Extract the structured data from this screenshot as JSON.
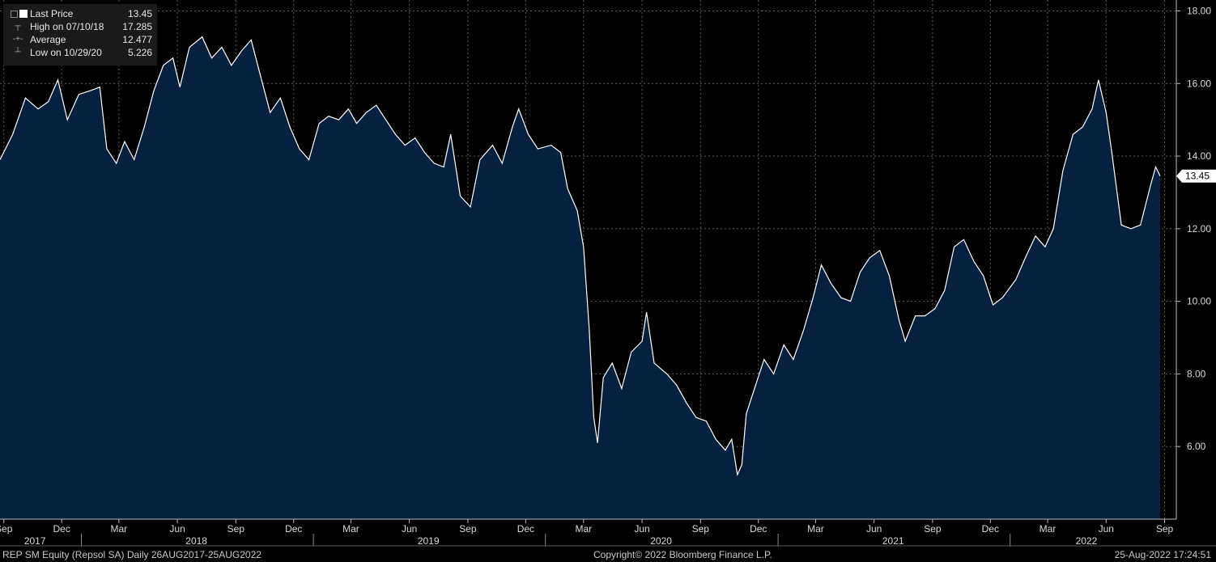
{
  "legend": {
    "items": [
      {
        "label": "Last Price",
        "value": "13.45"
      },
      {
        "label": "High on 07/10/18",
        "value": "17.285"
      },
      {
        "label": "Average",
        "value": "12.477"
      },
      {
        "label": "Low on 10/29/20",
        "value": "5.226"
      }
    ]
  },
  "footer": {
    "left": "REP SM Equity (Repsol SA)  Daily 26AUG2017-25AUG2022",
    "center": "Copyright© 2022 Bloomberg Finance L.P.",
    "right": "25-Aug-2022 17:24:51"
  },
  "colors": {
    "background": "#000000",
    "area_fill": "#06203f",
    "line": "#ffffff",
    "grid": "#5a5a5a"
  },
  "chart_data": {
    "type": "area",
    "ylim": [
      4.0,
      18.3
    ],
    "yticks": [
      "6.00",
      "8.00",
      "10.00",
      "12.00",
      "14.00",
      "16.00",
      "18.00"
    ],
    "last_price_label": "13.45",
    "xlim": [
      "2017-08-26",
      "2022-08-25"
    ],
    "months": [
      {
        "label": "Sep",
        "date": "2017-09-01"
      },
      {
        "label": "Dec",
        "date": "2017-12-01"
      },
      {
        "label": "Mar",
        "date": "2018-03-01"
      },
      {
        "label": "Jun",
        "date": "2018-06-01"
      },
      {
        "label": "Sep",
        "date": "2018-09-01"
      },
      {
        "label": "Dec",
        "date": "2018-12-01"
      },
      {
        "label": "Mar",
        "date": "2019-03-01"
      },
      {
        "label": "Jun",
        "date": "2019-06-01"
      },
      {
        "label": "Sep",
        "date": "2019-09-01"
      },
      {
        "label": "Dec",
        "date": "2019-12-01"
      },
      {
        "label": "Mar",
        "date": "2020-03-01"
      },
      {
        "label": "Jun",
        "date": "2020-06-01"
      },
      {
        "label": "Sep",
        "date": "2020-09-01"
      },
      {
        "label": "Dec",
        "date": "2020-12-01"
      },
      {
        "label": "Mar",
        "date": "2021-03-01"
      },
      {
        "label": "Jun",
        "date": "2021-06-01"
      },
      {
        "label": "Sep",
        "date": "2021-09-01"
      },
      {
        "label": "Dec",
        "date": "2021-12-01"
      },
      {
        "label": "Mar",
        "date": "2022-03-01"
      },
      {
        "label": "Jun",
        "date": "2022-06-01"
      },
      {
        "label": "Sep",
        "date": "2022-09-01"
      }
    ],
    "years": [
      {
        "label": "2017",
        "center": "2017-10-20"
      },
      {
        "label": "2018",
        "center": "2018-07-01"
      },
      {
        "label": "2019",
        "center": "2019-07-01"
      },
      {
        "label": "2020",
        "center": "2020-07-01"
      },
      {
        "label": "2021",
        "center": "2021-07-01"
      },
      {
        "label": "2022",
        "center": "2022-05-01"
      }
    ],
    "year_separators": [
      "2018-01-01",
      "2019-01-01",
      "2020-01-01",
      "2021-01-01",
      "2022-01-01"
    ],
    "series": [
      {
        "points": [
          [
            "2017-08-26",
            13.9
          ],
          [
            "2017-09-15",
            14.6
          ],
          [
            "2017-10-05",
            15.6
          ],
          [
            "2017-10-25",
            15.3
          ],
          [
            "2017-11-10",
            15.5
          ],
          [
            "2017-11-25",
            16.1
          ],
          [
            "2017-12-10",
            15.0
          ],
          [
            "2017-12-28",
            15.7
          ],
          [
            "2018-01-15",
            15.8
          ],
          [
            "2018-01-30",
            15.9
          ],
          [
            "2018-02-10",
            14.2
          ],
          [
            "2018-02-25",
            13.8
          ],
          [
            "2018-03-10",
            14.4
          ],
          [
            "2018-03-25",
            13.9
          ],
          [
            "2018-04-10",
            14.8
          ],
          [
            "2018-04-25",
            15.8
          ],
          [
            "2018-05-10",
            16.5
          ],
          [
            "2018-05-25",
            16.7
          ],
          [
            "2018-06-05",
            15.9
          ],
          [
            "2018-06-20",
            17.0
          ],
          [
            "2018-07-10",
            17.285
          ],
          [
            "2018-07-25",
            16.7
          ],
          [
            "2018-08-10",
            17.0
          ],
          [
            "2018-08-25",
            16.5
          ],
          [
            "2018-09-10",
            16.9
          ],
          [
            "2018-09-25",
            17.2
          ],
          [
            "2018-10-10",
            16.2
          ],
          [
            "2018-10-25",
            15.2
          ],
          [
            "2018-11-10",
            15.6
          ],
          [
            "2018-11-25",
            14.8
          ],
          [
            "2018-12-10",
            14.2
          ],
          [
            "2018-12-25",
            13.9
          ],
          [
            "2019-01-10",
            14.9
          ],
          [
            "2019-01-25",
            15.1
          ],
          [
            "2019-02-10",
            15.0
          ],
          [
            "2019-02-25",
            15.3
          ],
          [
            "2019-03-10",
            14.9
          ],
          [
            "2019-03-25",
            15.2
          ],
          [
            "2019-04-10",
            15.4
          ],
          [
            "2019-04-25",
            15.0
          ],
          [
            "2019-05-10",
            14.6
          ],
          [
            "2019-05-25",
            14.3
          ],
          [
            "2019-06-10",
            14.5
          ],
          [
            "2019-06-25",
            14.1
          ],
          [
            "2019-07-10",
            13.8
          ],
          [
            "2019-07-25",
            13.7
          ],
          [
            "2019-08-05",
            14.6
          ],
          [
            "2019-08-20",
            12.9
          ],
          [
            "2019-09-05",
            12.6
          ],
          [
            "2019-09-20",
            13.9
          ],
          [
            "2019-10-10",
            14.3
          ],
          [
            "2019-10-25",
            13.8
          ],
          [
            "2019-11-10",
            14.8
          ],
          [
            "2019-11-20",
            15.3
          ],
          [
            "2019-12-05",
            14.6
          ],
          [
            "2019-12-20",
            14.2
          ],
          [
            "2020-01-10",
            14.3
          ],
          [
            "2020-01-25",
            14.1
          ],
          [
            "2020-02-05",
            13.1
          ],
          [
            "2020-02-20",
            12.5
          ],
          [
            "2020-03-01",
            11.5
          ],
          [
            "2020-03-10",
            9.2
          ],
          [
            "2020-03-17",
            6.8
          ],
          [
            "2020-03-23",
            6.1
          ],
          [
            "2020-04-01",
            7.9
          ],
          [
            "2020-04-15",
            8.3
          ],
          [
            "2020-04-30",
            7.6
          ],
          [
            "2020-05-15",
            8.6
          ],
          [
            "2020-06-01",
            8.9
          ],
          [
            "2020-06-08",
            9.7
          ],
          [
            "2020-06-20",
            8.3
          ],
          [
            "2020-07-10",
            8.0
          ],
          [
            "2020-07-25",
            7.7
          ],
          [
            "2020-08-10",
            7.2
          ],
          [
            "2020-08-25",
            6.8
          ],
          [
            "2020-09-10",
            6.7
          ],
          [
            "2020-09-25",
            6.2
          ],
          [
            "2020-10-10",
            5.9
          ],
          [
            "2020-10-20",
            6.2
          ],
          [
            "2020-10-29",
            5.226
          ],
          [
            "2020-11-05",
            5.5
          ],
          [
            "2020-11-12",
            6.9
          ],
          [
            "2020-11-25",
            7.6
          ],
          [
            "2020-12-10",
            8.4
          ],
          [
            "2020-12-25",
            8.0
          ],
          [
            "2021-01-10",
            8.8
          ],
          [
            "2021-01-25",
            8.4
          ],
          [
            "2021-02-10",
            9.2
          ],
          [
            "2021-02-25",
            10.1
          ],
          [
            "2021-03-10",
            11.0
          ],
          [
            "2021-03-25",
            10.5
          ],
          [
            "2021-04-10",
            10.1
          ],
          [
            "2021-04-25",
            10.0
          ],
          [
            "2021-05-10",
            10.8
          ],
          [
            "2021-05-25",
            11.2
          ],
          [
            "2021-06-10",
            11.4
          ],
          [
            "2021-06-25",
            10.7
          ],
          [
            "2021-07-10",
            9.5
          ],
          [
            "2021-07-20",
            8.9
          ],
          [
            "2021-08-05",
            9.6
          ],
          [
            "2021-08-20",
            9.6
          ],
          [
            "2021-09-05",
            9.8
          ],
          [
            "2021-09-20",
            10.3
          ],
          [
            "2021-10-05",
            11.5
          ],
          [
            "2021-10-20",
            11.7
          ],
          [
            "2021-11-05",
            11.1
          ],
          [
            "2021-11-20",
            10.7
          ],
          [
            "2021-12-05",
            9.9
          ],
          [
            "2021-12-20",
            10.1
          ],
          [
            "2022-01-10",
            10.6
          ],
          [
            "2022-01-25",
            11.2
          ],
          [
            "2022-02-10",
            11.8
          ],
          [
            "2022-02-25",
            11.5
          ],
          [
            "2022-03-10",
            12.0
          ],
          [
            "2022-03-25",
            13.6
          ],
          [
            "2022-04-10",
            14.6
          ],
          [
            "2022-04-25",
            14.8
          ],
          [
            "2022-05-10",
            15.3
          ],
          [
            "2022-05-20",
            16.1
          ],
          [
            "2022-06-01",
            15.2
          ],
          [
            "2022-06-10",
            14.1
          ],
          [
            "2022-06-25",
            12.1
          ],
          [
            "2022-07-10",
            12.0
          ],
          [
            "2022-07-25",
            12.1
          ],
          [
            "2022-08-10",
            13.2
          ],
          [
            "2022-08-18",
            13.7
          ],
          [
            "2022-08-25",
            13.45
          ]
        ]
      }
    ]
  }
}
